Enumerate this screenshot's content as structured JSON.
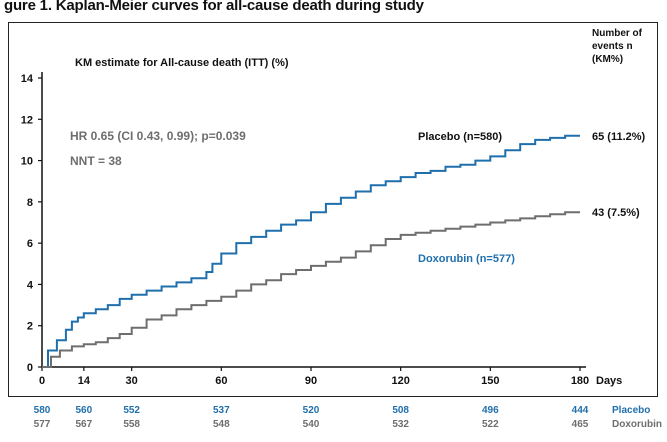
{
  "header": {
    "text": "gure 1. Kaplan-Meier curves for all-cause death during study"
  },
  "chart_data": {
    "type": "line",
    "title": "KM estimate for All-cause death (ITT) (%)",
    "annotation_lines": [
      "HR 0.65 (CI 0.43, 0.99); p=0.039",
      "NNT = 38"
    ],
    "xlabel": "Days",
    "ylabel": "",
    "x_ticks": [
      0,
      14,
      30,
      60,
      90,
      120,
      150,
      180
    ],
    "y_ticks": [
      0,
      2,
      4,
      6,
      8,
      10,
      12,
      14
    ],
    "xlim": [
      0,
      180
    ],
    "ylim": [
      0,
      14
    ],
    "grid": false,
    "end_label_header": [
      "Number of",
      "events n",
      "(KM%)"
    ],
    "series": [
      {
        "name": "Placebo (n=580)",
        "color": "#1f6fad",
        "end_label": "65 (11.2%)",
        "x": [
          0,
          2,
          5,
          8,
          10,
          12,
          14,
          18,
          22,
          26,
          30,
          35,
          40,
          45,
          50,
          55,
          57,
          60,
          65,
          70,
          75,
          80,
          85,
          90,
          95,
          100,
          105,
          110,
          115,
          120,
          125,
          130,
          135,
          140,
          145,
          150,
          155,
          160,
          165,
          170,
          175,
          180
        ],
        "y": [
          0,
          0.8,
          1.3,
          1.8,
          2.2,
          2.4,
          2.6,
          2.8,
          3.0,
          3.3,
          3.5,
          3.7,
          3.9,
          4.1,
          4.3,
          4.6,
          5.0,
          5.5,
          6.0,
          6.3,
          6.6,
          6.9,
          7.1,
          7.5,
          7.9,
          8.2,
          8.5,
          8.8,
          9.0,
          9.2,
          9.4,
          9.5,
          9.7,
          9.8,
          10.0,
          10.2,
          10.5,
          10.8,
          11.0,
          11.1,
          11.2,
          11.2
        ]
      },
      {
        "name": "Doxorubin (n=577)",
        "color": "#6e6e6e",
        "end_label": "43 (7.5%)",
        "x": [
          0,
          3,
          6,
          10,
          14,
          18,
          22,
          26,
          30,
          35,
          40,
          45,
          50,
          55,
          60,
          65,
          70,
          75,
          80,
          85,
          90,
          95,
          100,
          105,
          110,
          115,
          120,
          125,
          130,
          135,
          140,
          145,
          150,
          155,
          160,
          165,
          170,
          175,
          180
        ],
        "y": [
          0,
          0.5,
          0.8,
          1.0,
          1.1,
          1.2,
          1.4,
          1.6,
          1.9,
          2.3,
          2.5,
          2.8,
          3.0,
          3.2,
          3.4,
          3.7,
          4.0,
          4.2,
          4.5,
          4.7,
          4.9,
          5.1,
          5.3,
          5.6,
          5.9,
          6.2,
          6.4,
          6.5,
          6.6,
          6.7,
          6.8,
          6.9,
          7.0,
          7.1,
          7.2,
          7.3,
          7.4,
          7.5,
          7.5
        ]
      }
    ],
    "at_risk": {
      "days": [
        0,
        14,
        30,
        60,
        90,
        120,
        150,
        180
      ],
      "rows": [
        {
          "label": "Placebo",
          "color": "#1f6fad",
          "values": [
            "580",
            "560",
            "552",
            "537",
            "520",
            "508",
            "496",
            "444"
          ]
        },
        {
          "label": "Doxorubin",
          "color": "#6e6e6e",
          "values": [
            "577",
            "567",
            "558",
            "548",
            "540",
            "532",
            "522",
            "465"
          ]
        }
      ]
    }
  }
}
